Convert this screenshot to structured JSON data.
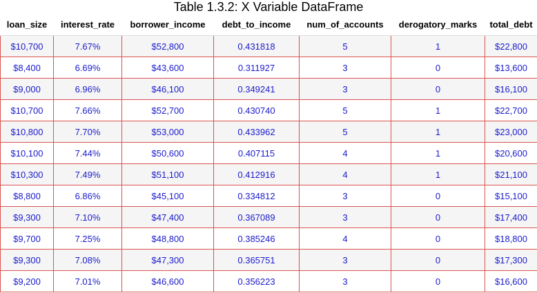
{
  "title": "Table 1.3.2: X Variable DataFrame",
  "columns": [
    "loan_size",
    "interest_rate",
    "borrower_income",
    "debt_to_income",
    "num_of_accounts",
    "derogatory_marks",
    "total_debt"
  ],
  "rows": [
    [
      "$10,700",
      "7.67%",
      "$52,800",
      "0.431818",
      "5",
      "1",
      "$22,800"
    ],
    [
      "$8,400",
      "6.69%",
      "$43,600",
      "0.311927",
      "3",
      "0",
      "$13,600"
    ],
    [
      "$9,000",
      "6.96%",
      "$46,100",
      "0.349241",
      "3",
      "0",
      "$16,100"
    ],
    [
      "$10,700",
      "7.66%",
      "$52,700",
      "0.430740",
      "5",
      "1",
      "$22,700"
    ],
    [
      "$10,800",
      "7.70%",
      "$53,000",
      "0.433962",
      "5",
      "1",
      "$23,000"
    ],
    [
      "$10,100",
      "7.44%",
      "$50,600",
      "0.407115",
      "4",
      "1",
      "$20,600"
    ],
    [
      "$10,300",
      "7.49%",
      "$51,100",
      "0.412916",
      "4",
      "1",
      "$21,100"
    ],
    [
      "$8,800",
      "6.86%",
      "$45,100",
      "0.334812",
      "3",
      "0",
      "$15,100"
    ],
    [
      "$9,300",
      "7.10%",
      "$47,400",
      "0.367089",
      "3",
      "0",
      "$17,400"
    ],
    [
      "$9,700",
      "7.25%",
      "$48,800",
      "0.385246",
      "4",
      "0",
      "$18,800"
    ],
    [
      "$9,300",
      "7.08%",
      "$47,300",
      "0.365751",
      "3",
      "0",
      "$17,300"
    ],
    [
      "$9,200",
      "7.01%",
      "$46,600",
      "0.356223",
      "3",
      "0",
      "$16,600"
    ]
  ],
  "colors": {
    "cell_text": "#1a1acc",
    "cell_border": "#d9534f",
    "stripe": "#f5f5f5"
  }
}
